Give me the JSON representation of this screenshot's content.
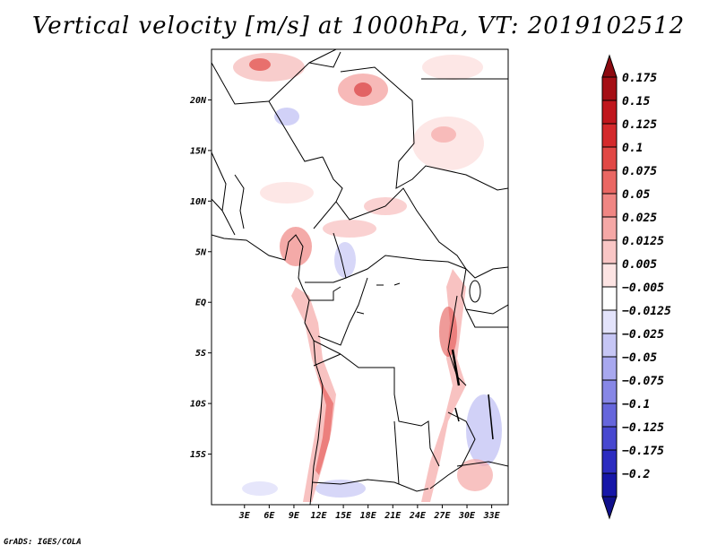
{
  "title": "Vertical velocity [m/s] at 1000hPa, VT: 2019102512",
  "credit": "GrADS: IGES/COLA",
  "map": {
    "lon_range": [
      -1,
      35
    ],
    "lat_range": [
      -20,
      25
    ],
    "lat_ticks": [
      {
        "value": 20,
        "label": "20N"
      },
      {
        "value": 15,
        "label": "15N"
      },
      {
        "value": 10,
        "label": "10N"
      },
      {
        "value": 5,
        "label": "5N"
      },
      {
        "value": 0,
        "label": "EQ"
      },
      {
        "value": -5,
        "label": "5S"
      },
      {
        "value": -10,
        "label": "10S"
      },
      {
        "value": -15,
        "label": "15S"
      }
    ],
    "lon_ticks": [
      {
        "value": 3,
        "label": "3E"
      },
      {
        "value": 6,
        "label": "6E"
      },
      {
        "value": 9,
        "label": "9E"
      },
      {
        "value": 12,
        "label": "12E"
      },
      {
        "value": 15,
        "label": "15E"
      },
      {
        "value": 18,
        "label": "18E"
      },
      {
        "value": 21,
        "label": "21E"
      },
      {
        "value": 24,
        "label": "24E"
      },
      {
        "value": 27,
        "label": "27E"
      },
      {
        "value": 30,
        "label": "30E"
      },
      {
        "value": 33,
        "label": "33E"
      }
    ]
  },
  "colorbar": {
    "levels": [
      {
        "label": "0.175",
        "color": "#a50f15"
      },
      {
        "label": "0.15",
        "color": "#c0171d"
      },
      {
        "label": "0.125",
        "color": "#d42a2c"
      },
      {
        "label": "0.1",
        "color": "#e14845"
      },
      {
        "label": "0.075",
        "color": "#ea6763"
      },
      {
        "label": "0.05",
        "color": "#f08683"
      },
      {
        "label": "0.025",
        "color": "#f5a8a6"
      },
      {
        "label": "0.0125",
        "color": "#f9c6c5"
      },
      {
        "label": "0.005",
        "color": "#fde4e3"
      },
      {
        "label": "−0.005",
        "color": "#ffffff"
      },
      {
        "label": "−0.0125",
        "color": "#e3e3fb"
      },
      {
        "label": "−0.025",
        "color": "#c6c6f5"
      },
      {
        "label": "−0.05",
        "color": "#a8a8ef"
      },
      {
        "label": "−0.075",
        "color": "#8787e6"
      },
      {
        "label": "−0.1",
        "color": "#6666dc"
      },
      {
        "label": "−0.125",
        "color": "#4848d0"
      },
      {
        "label": "−0.175",
        "color": "#2c2cc0"
      },
      {
        "label": "−0.2",
        "color": "#1616a8"
      }
    ],
    "top_color": "#8c0a10",
    "bottom_color": "#10108c"
  }
}
